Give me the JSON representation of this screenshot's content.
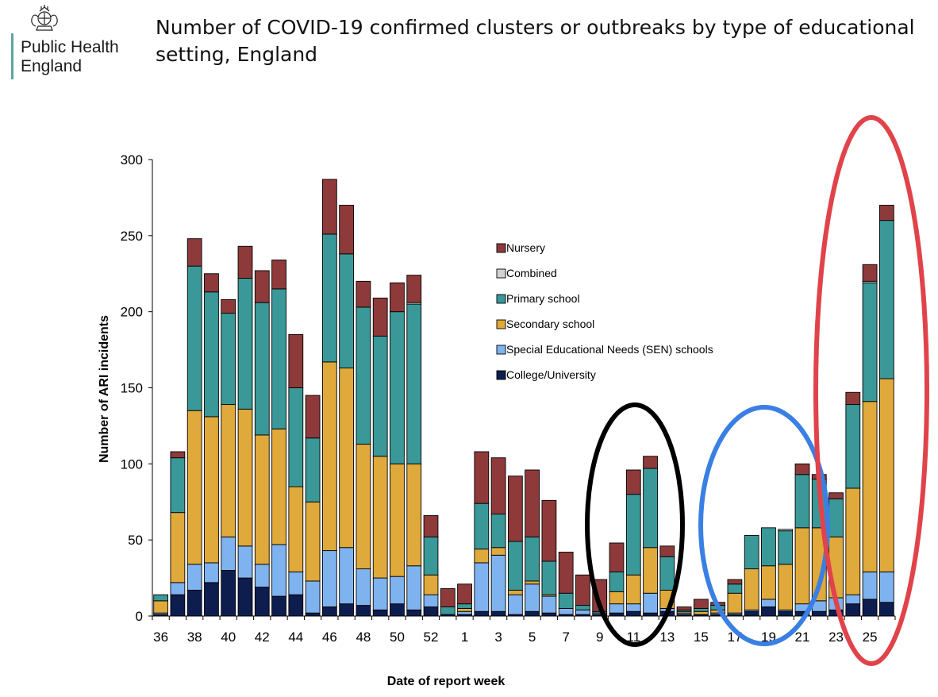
{
  "header": {
    "logo_line1": "Public Health",
    "logo_line2": "England",
    "title": "Number of COVID-19 confirmed clusters or outbreaks by type of educational setting, England"
  },
  "chart_data": {
    "type": "bar",
    "stacked": true,
    "ylabel": "Number of ARI incidents",
    "xlabel": "Date of report week",
    "ylim": [
      0,
      300
    ],
    "yticks": [
      "0",
      "50",
      "100",
      "150",
      "200",
      "250",
      "300"
    ],
    "legend_position": "center-right",
    "grid": false,
    "categories": [
      "36",
      "37",
      "38",
      "39",
      "40",
      "41",
      "42",
      "43",
      "44",
      "45",
      "46",
      "47",
      "48",
      "49",
      "50",
      "51",
      "52",
      "53",
      "1",
      "2",
      "3",
      "4",
      "5",
      "6",
      "7",
      "8",
      "9",
      "10",
      "11",
      "12",
      "13",
      "14",
      "15",
      "16",
      "17",
      "18",
      "19",
      "20",
      "21",
      "22",
      "23",
      "24",
      "25",
      "26"
    ],
    "tick_labels": [
      "36",
      "38",
      "40",
      "42",
      "44",
      "46",
      "48",
      "50",
      "52",
      "1",
      "3",
      "5",
      "7",
      "9",
      "11",
      "13",
      "15",
      "17",
      "19",
      "21",
      "23",
      "25"
    ],
    "tick_positions": [
      36,
      38,
      40,
      42,
      44,
      46,
      48,
      50,
      52,
      54,
      56,
      58,
      60,
      62,
      64,
      66,
      68,
      70,
      72,
      74,
      76,
      78
    ],
    "series": [
      {
        "name": "College/University",
        "color": "#0d1d4e",
        "values": [
          1,
          14,
          17,
          22,
          30,
          25,
          19,
          13,
          14,
          2,
          6,
          8,
          7,
          4,
          8,
          4,
          6,
          1,
          1,
          3,
          3,
          1,
          3,
          2,
          1,
          1,
          1,
          2,
          3,
          2,
          3,
          1,
          1,
          1,
          1,
          3,
          6,
          3,
          3,
          3,
          4,
          8,
          11,
          9
        ]
      },
      {
        "name": "Special Educational Needs (SEN) schools",
        "color": "#7fb3ef",
        "values": [
          1,
          8,
          17,
          13,
          22,
          21,
          15,
          34,
          15,
          21,
          37,
          37,
          24,
          21,
          18,
          29,
          8,
          0,
          2,
          32,
          37,
          13,
          18,
          11,
          4,
          3,
          1,
          6,
          5,
          13,
          2,
          1,
          0,
          1,
          1,
          1,
          5,
          1,
          5,
          7,
          8,
          6,
          18,
          20
        ]
      },
      {
        "name": "Secondary school",
        "color": "#e0a93b",
        "values": [
          8,
          46,
          101,
          96,
          87,
          90,
          85,
          76,
          56,
          52,
          124,
          118,
          82,
          80,
          74,
          67,
          13,
          0,
          2,
          9,
          5,
          3,
          2,
          1,
          0,
          0,
          0,
          8,
          19,
          30,
          12,
          1,
          2,
          2,
          13,
          27,
          22,
          30,
          50,
          48,
          40,
          70,
          112,
          127
        ]
      },
      {
        "name": "Primary school",
        "color": "#3a9898",
        "values": [
          4,
          36,
          95,
          82,
          60,
          86,
          87,
          92,
          65,
          42,
          84,
          75,
          90,
          79,
          100,
          105,
          25,
          5,
          3,
          30,
          22,
          32,
          29,
          22,
          10,
          3,
          1,
          13,
          53,
          52,
          22,
          1,
          2,
          3,
          6,
          22,
          25,
          22,
          35,
          32,
          25,
          55,
          78,
          104
        ]
      },
      {
        "name": "Combined",
        "color": "#d3d3d3",
        "values": [
          0,
          0,
          0,
          0,
          0,
          0,
          0,
          0,
          0,
          0,
          0,
          0,
          0,
          0,
          0,
          1,
          0,
          0,
          0,
          0,
          0,
          0,
          0,
          0,
          0,
          0,
          0,
          0,
          0,
          0,
          0,
          0,
          0,
          0,
          0,
          0,
          0,
          1,
          0,
          0,
          0,
          0,
          1,
          0
        ]
      },
      {
        "name": "Nursery",
        "color": "#8e3a3a",
        "values": [
          0,
          4,
          18,
          12,
          9,
          21,
          21,
          19,
          35,
          28,
          36,
          32,
          17,
          25,
          19,
          18,
          14,
          12,
          13,
          34,
          37,
          43,
          44,
          40,
          27,
          20,
          21,
          19,
          16,
          8,
          7,
          2,
          6,
          2,
          3,
          0,
          0,
          0,
          7,
          3,
          4,
          8,
          11,
          10
        ]
      }
    ]
  }
}
